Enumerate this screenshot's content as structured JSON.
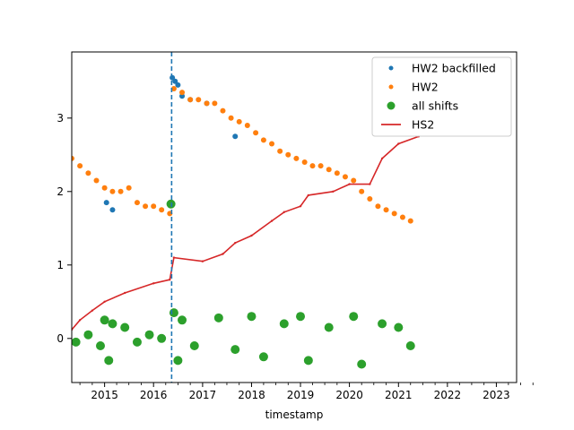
{
  "chart_data": {
    "type": "scatter",
    "title": "",
    "xlabel": "timestamp",
    "ylabel": "",
    "x_tick_labels": [
      "2015",
      "2016",
      "2017",
      "2018",
      "2019",
      "2020",
      "2021",
      "2022",
      "2023"
    ],
    "y_ticks": [
      0,
      1,
      2,
      3
    ],
    "xlim": [
      "2014-05-01",
      "2023-06-01"
    ],
    "ylim": [
      -0.6,
      3.9
    ],
    "grid": false,
    "legend_position": "top-right",
    "vline": {
      "x": "2016-05-15",
      "style": "dashed",
      "color": "#1f77b4"
    },
    "series": [
      {
        "name": "HW2 backfilled",
        "kind": "points",
        "color": "#1f77b4",
        "points": [
          [
            "2016-05-20",
            3.55
          ],
          [
            "2016-06-10",
            3.5
          ],
          [
            "2016-07-01",
            3.45
          ],
          [
            "2016-08-01",
            3.3
          ],
          [
            "2016-10-01",
            3.25
          ],
          [
            "2017-02-01",
            3.2
          ],
          [
            "2015-01-15",
            1.85
          ],
          [
            "2015-03-01",
            1.75
          ],
          [
            "2017-09-01",
            2.75
          ]
        ]
      },
      {
        "name": "HW2",
        "kind": "points",
        "color": "#ff7f0e",
        "points": [
          [
            "2014-05-01",
            2.45
          ],
          [
            "2014-07-01",
            2.35
          ],
          [
            "2014-09-01",
            2.25
          ],
          [
            "2014-11-01",
            2.15
          ],
          [
            "2015-01-01",
            2.05
          ],
          [
            "2015-03-01",
            2.0
          ],
          [
            "2015-05-01",
            2.0
          ],
          [
            "2015-07-01",
            2.05
          ],
          [
            "2015-09-01",
            1.85
          ],
          [
            "2015-11-01",
            1.8
          ],
          [
            "2016-01-01",
            1.8
          ],
          [
            "2016-03-01",
            1.75
          ],
          [
            "2016-05-01",
            1.7
          ],
          [
            "2016-06-01",
            3.4
          ],
          [
            "2016-08-01",
            3.35
          ],
          [
            "2016-10-01",
            3.25
          ],
          [
            "2016-12-01",
            3.25
          ],
          [
            "2017-02-01",
            3.2
          ],
          [
            "2017-04-01",
            3.2
          ],
          [
            "2017-06-01",
            3.1
          ],
          [
            "2017-08-01",
            3.0
          ],
          [
            "2017-10-01",
            2.95
          ],
          [
            "2017-12-01",
            2.9
          ],
          [
            "2018-02-01",
            2.8
          ],
          [
            "2018-04-01",
            2.7
          ],
          [
            "2018-06-01",
            2.65
          ],
          [
            "2018-08-01",
            2.55
          ],
          [
            "2018-10-01",
            2.5
          ],
          [
            "2018-12-01",
            2.45
          ],
          [
            "2019-02-01",
            2.4
          ],
          [
            "2019-04-01",
            2.35
          ],
          [
            "2019-06-01",
            2.35
          ],
          [
            "2019-08-01",
            2.3
          ],
          [
            "2019-10-01",
            2.25
          ],
          [
            "2019-12-01",
            2.2
          ],
          [
            "2020-02-01",
            2.15
          ],
          [
            "2020-04-01",
            2.0
          ],
          [
            "2020-06-01",
            1.9
          ],
          [
            "2020-08-01",
            1.8
          ],
          [
            "2020-10-01",
            1.75
          ],
          [
            "2020-12-01",
            1.7
          ],
          [
            "2021-02-01",
            1.65
          ],
          [
            "2021-04-01",
            1.6
          ]
        ]
      },
      {
        "name": "all shifts",
        "kind": "points",
        "color": "#2ca02c",
        "points": [
          [
            "2014-06-01",
            -0.05
          ],
          [
            "2014-09-01",
            0.05
          ],
          [
            "2014-12-01",
            -0.1
          ],
          [
            "2015-01-01",
            0.25
          ],
          [
            "2015-02-01",
            -0.3
          ],
          [
            "2015-03-01",
            0.2
          ],
          [
            "2015-06-01",
            0.15
          ],
          [
            "2015-09-01",
            -0.05
          ],
          [
            "2015-12-01",
            0.05
          ],
          [
            "2016-03-01",
            0.0
          ],
          [
            "2016-05-10",
            1.83
          ],
          [
            "2016-06-01",
            0.35
          ],
          [
            "2016-07-01",
            -0.3
          ],
          [
            "2016-08-01",
            0.25
          ],
          [
            "2016-11-01",
            -0.1
          ],
          [
            "2017-05-01",
            0.28
          ],
          [
            "2017-09-01",
            -0.15
          ],
          [
            "2018-01-01",
            0.3
          ],
          [
            "2018-04-01",
            -0.25
          ],
          [
            "2018-09-01",
            0.2
          ],
          [
            "2019-01-01",
            0.3
          ],
          [
            "2019-03-01",
            -0.3
          ],
          [
            "2019-08-01",
            0.15
          ],
          [
            "2020-02-01",
            0.3
          ],
          [
            "2020-04-01",
            -0.35
          ],
          [
            "2020-09-01",
            0.2
          ],
          [
            "2021-01-01",
            0.15
          ],
          [
            "2021-04-01",
            -0.1
          ]
        ]
      },
      {
        "name": "HS2",
        "kind": "line",
        "color": "#d62728",
        "points": [
          [
            "2014-05-01",
            0.12
          ],
          [
            "2014-07-01",
            0.25
          ],
          [
            "2014-10-01",
            0.38
          ],
          [
            "2015-01-01",
            0.5
          ],
          [
            "2015-06-01",
            0.62
          ],
          [
            "2016-01-01",
            0.75
          ],
          [
            "2016-05-01",
            0.8
          ],
          [
            "2016-06-01",
            1.1
          ],
          [
            "2017-01-01",
            1.05
          ],
          [
            "2017-06-01",
            1.15
          ],
          [
            "2017-09-01",
            1.3
          ],
          [
            "2018-01-01",
            1.4
          ],
          [
            "2018-06-01",
            1.6
          ],
          [
            "2018-09-01",
            1.72
          ],
          [
            "2019-01-01",
            1.8
          ],
          [
            "2019-03-01",
            1.95
          ],
          [
            "2019-09-01",
            2.0
          ],
          [
            "2020-01-01",
            2.1
          ],
          [
            "2020-06-01",
            2.1
          ],
          [
            "2020-09-01",
            2.45
          ],
          [
            "2021-01-01",
            2.65
          ],
          [
            "2021-06-01",
            2.75
          ]
        ]
      }
    ]
  }
}
